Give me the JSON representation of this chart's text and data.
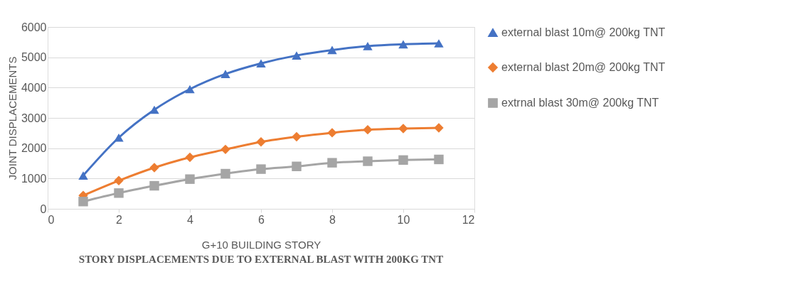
{
  "chart_data": {
    "type": "line",
    "title": "STORY DISPLACEMENTS DUE TO EXTERNAL BLAST WITH 200KG TNT",
    "xlabel": "G+10 BUILDING STORY",
    "ylabel": "JOINT DISPLACEMENTS",
    "x": [
      1,
      2,
      3,
      4,
      5,
      6,
      7,
      8,
      9,
      10,
      11
    ],
    "series": [
      {
        "name": "external blast 10m@ 200kg TNT",
        "color": "#4472c4",
        "marker": "triangle",
        "values": [
          1100,
          2350,
          3270,
          3950,
          4450,
          4800,
          5060,
          5240,
          5370,
          5430,
          5460
        ]
      },
      {
        "name": "external blast 20m@ 200kg TNT",
        "color": "#ed7d31",
        "marker": "diamond",
        "values": [
          440,
          930,
          1360,
          1700,
          1960,
          2210,
          2380,
          2510,
          2610,
          2650,
          2670
        ]
      },
      {
        "name": "extrnal blast 30m@ 200kg TNT",
        "color": "#a5a5a5",
        "marker": "square",
        "values": [
          240,
          520,
          760,
          980,
          1160,
          1310,
          1400,
          1520,
          1570,
          1610,
          1630
        ]
      }
    ],
    "xlim": [
      0,
      12
    ],
    "xticks": [
      0,
      2,
      4,
      6,
      8,
      10,
      12
    ],
    "ylim": [
      0,
      6000
    ],
    "yticks": [
      0,
      1000,
      2000,
      3000,
      4000,
      5000,
      6000
    ],
    "grid": "y",
    "legend": "right",
    "line_style": "solid"
  }
}
